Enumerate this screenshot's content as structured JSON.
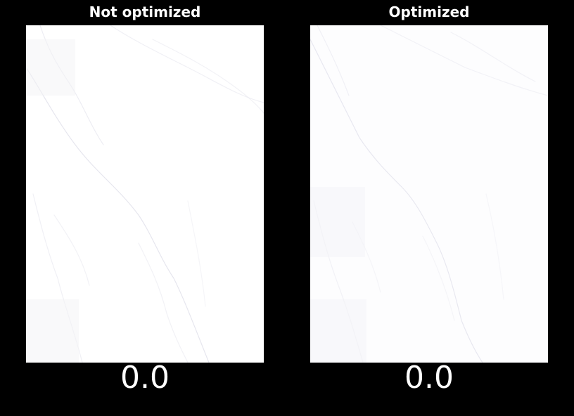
{
  "panels": [
    {
      "title": "Not optimized",
      "value": "0.0",
      "background": "#ffffff"
    },
    {
      "title": "Optimized",
      "value": "0.0",
      "background": "#fdfdfe"
    }
  ],
  "colors": {
    "page_background": "#000000",
    "text": "#ffffff",
    "faint_line": "#ececf2"
  }
}
